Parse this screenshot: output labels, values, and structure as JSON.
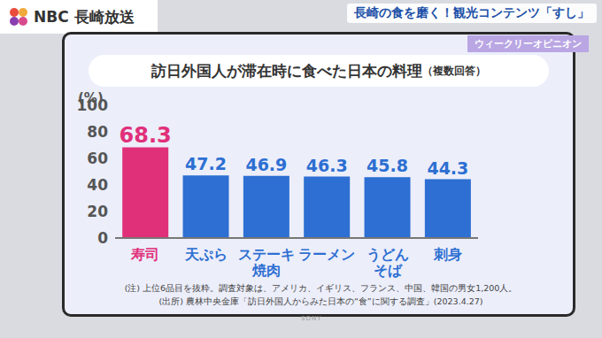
{
  "header": {
    "logo": "NBC 長崎放送",
    "headline": "長崎の食を磨く！観光コンテンツ「すし」",
    "tag": "ウィークリーオピニオン"
  },
  "monitor_brand": "SONY",
  "chart_data": {
    "type": "bar",
    "title": "訪日外国人が滞在時に食べた日本の料理",
    "subtitle": "（複数回答）",
    "ylabel": "(%)",
    "categories": [
      "寿司",
      "天ぷら",
      "ステーキ\n焼肉",
      "ラーメン",
      "うどん\nそば",
      "刺身"
    ],
    "values": [
      68.3,
      47.2,
      46.9,
      46.3,
      45.8,
      44.3
    ],
    "colors": [
      "#e0307a",
      "#2d6fd2",
      "#2d6fd2",
      "#2d6fd2",
      "#2d6fd2",
      "#2d6fd2"
    ],
    "ylim": [
      0,
      100
    ],
    "yticks": [
      0,
      20,
      40,
      60,
      80,
      100
    ],
    "grid": false,
    "data_labels": true,
    "notes": [
      "(注) 上位6品目を抜粋。調査対象は、アメリカ、イギリス、フランス、中国、韓国の男女1,200人。",
      "(出所) 農林中央金庫「訪日外国人からみた日本の“食”に関する調査」(2023.4.27)"
    ]
  }
}
